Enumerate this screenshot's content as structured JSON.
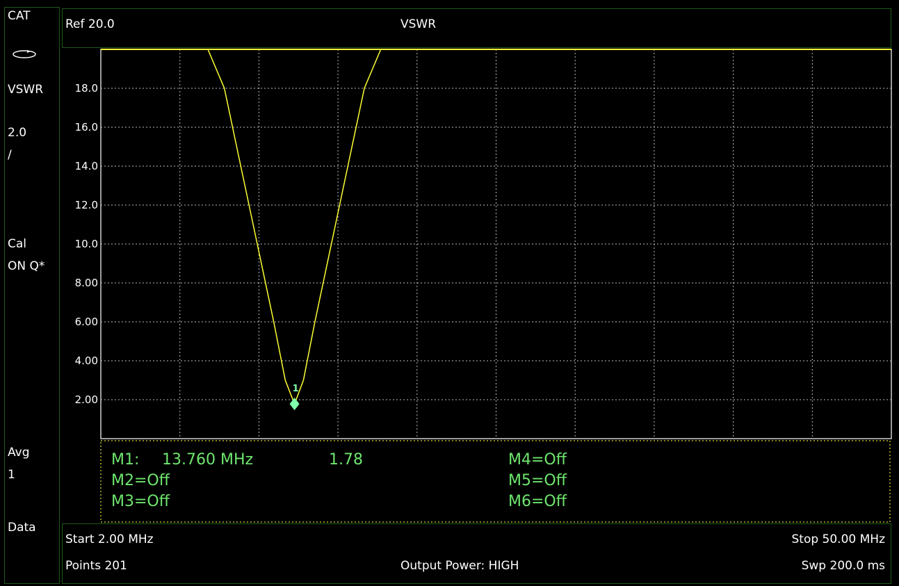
{
  "side": {
    "cat": "CAT",
    "mode": "VSWR",
    "scale": "2.0",
    "scale_div": "/",
    "cal": "Cal",
    "cal_status": "ON Q*",
    "avg": "Avg",
    "avg_value": "1",
    "data": "Data",
    "sweep_icon": "rotate-icon"
  },
  "header": {
    "ref": "Ref 20.0",
    "title": "VSWR"
  },
  "markers": {
    "m1_label": "M1:",
    "m1_freq": "13.760 MHz",
    "m1_value": "1.78",
    "m2": "M2=Off",
    "m3": "M3=Off",
    "m4": "M4=Off",
    "m5": "M5=Off",
    "m6": "M6=Off",
    "marker_tag": "1"
  },
  "footer": {
    "start": "Start 2.00 MHz",
    "stop": "Stop 50.00 MHz",
    "points": "Points 201",
    "output_power": "Output Power: HIGH",
    "sweep": "Swp 200.0 ms"
  },
  "chart_data": {
    "type": "line",
    "xlim": [
      2.0,
      50.0
    ],
    "ylim": [
      0,
      20
    ],
    "grid": true,
    "yticks": [
      "18.0",
      "16.0",
      "14.0",
      "12.0",
      "10.0",
      "8.00",
      "6.00",
      "4.00",
      "2.00"
    ],
    "ytick_values": [
      18,
      16,
      14,
      12,
      10,
      8,
      6,
      4,
      2
    ],
    "series": [
      {
        "color": "#ffff33",
        "x": [
          2.0,
          8.5,
          9.5,
          10.5,
          11.5,
          12.5,
          13.2,
          13.76,
          14.3,
          15.0,
          16.0,
          17.0,
          18.0,
          19.0,
          50.0
        ],
        "y": [
          20.0,
          20.0,
          18.0,
          14.0,
          10.0,
          6.0,
          3.0,
          1.78,
          3.0,
          6.0,
          10.0,
          14.0,
          18.0,
          20.0,
          20.0
        ]
      }
    ],
    "marker": {
      "x": 13.76,
      "y": 1.78,
      "label": "1",
      "color": "#7fffaa"
    }
  }
}
